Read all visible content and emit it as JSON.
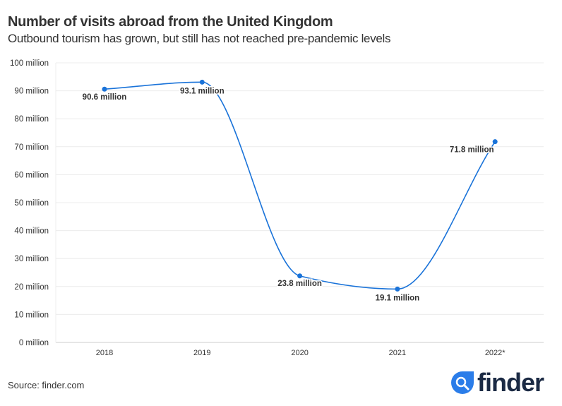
{
  "title": "Number of visits abroad from the United Kingdom",
  "subtitle": "Outbound tourism has grown, but still has not reached pre-pandemic levels",
  "source": "Source: finder.com",
  "logo": {
    "text": "finder",
    "icon": "search-magnifier-icon",
    "color": "#2b7de9"
  },
  "chart_data": {
    "type": "line",
    "categories": [
      "2018",
      "2019",
      "2020",
      "2021",
      "2022*"
    ],
    "values": [
      90.6,
      93.1,
      23.8,
      19.1,
      71.8
    ],
    "data_labels": [
      "90.6 million",
      "93.1 million",
      "23.8 million",
      "19.1 million",
      "71.8 million"
    ],
    "ylim": [
      0,
      100
    ],
    "yticks": [
      0,
      10,
      20,
      30,
      40,
      50,
      60,
      70,
      80,
      90,
      100
    ],
    "ytick_labels": [
      "0 million",
      "10 million",
      "20 million",
      "30 million",
      "40 million",
      "50 million",
      "60 million",
      "70 million",
      "80 million",
      "90 million",
      "100 million"
    ],
    "xlabel": "",
    "ylabel": "",
    "grid": "horizontal",
    "curve": "smooth",
    "line_color": "#1a73d9"
  }
}
